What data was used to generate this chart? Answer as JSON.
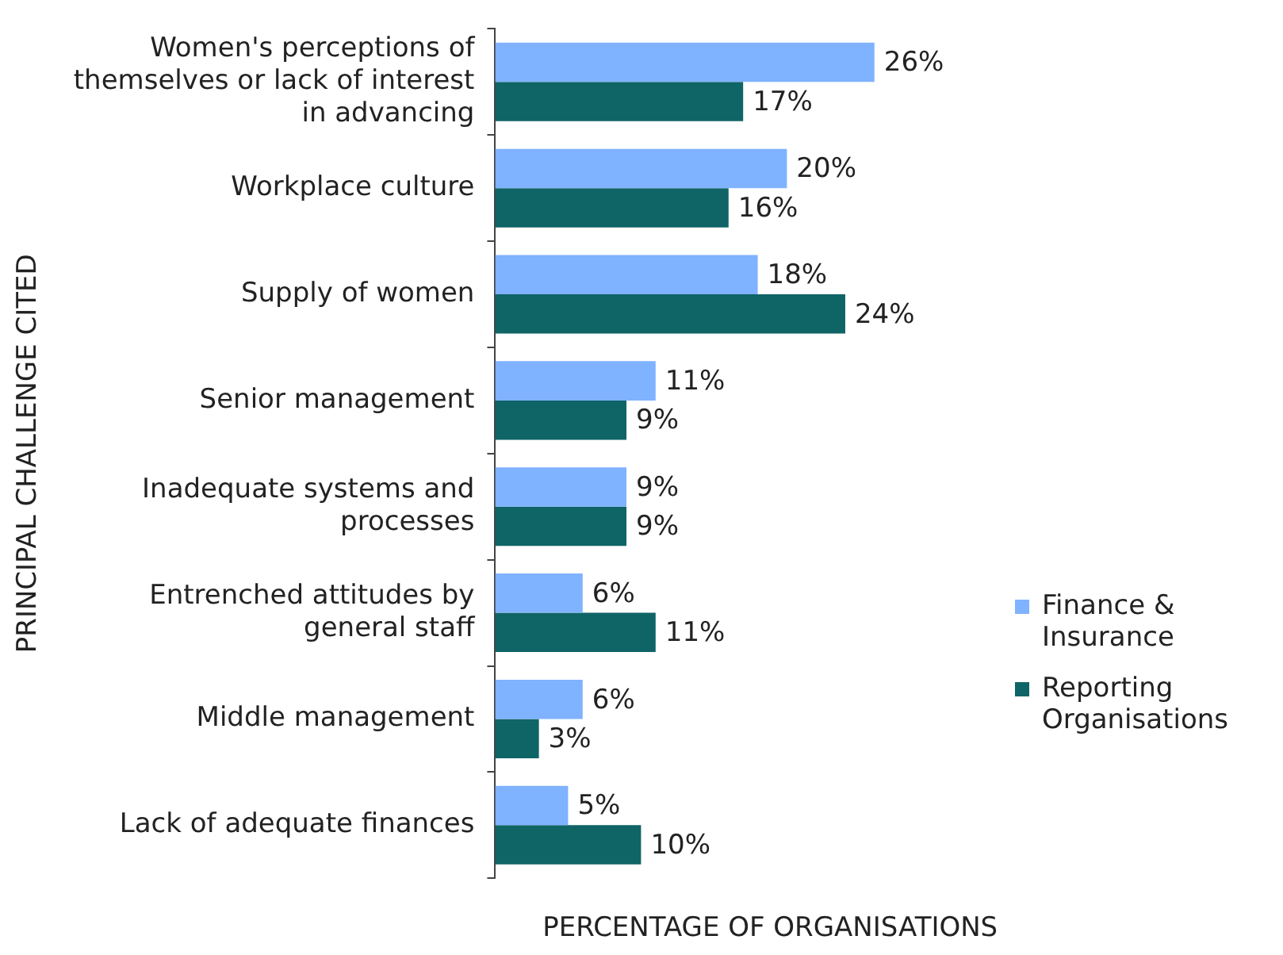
{
  "chart_data": {
    "type": "bar",
    "orientation": "horizontal",
    "xlabel": "PERCENTAGE OF ORGANISATIONS",
    "ylabel": "PRINCIPAL CHALLENGE CITED",
    "categories": [
      "Women's perceptions of themselves or lack of interest in advancing",
      "Workplace culture",
      "Supply of women",
      "Senior management",
      "Inadequate systems and processes",
      "Entrenched attitudes by general staff",
      "Middle management",
      "Lack of adequate finances"
    ],
    "series": [
      {
        "name": "Finance & Insurance",
        "color": "#7fb2ff",
        "values": [
          26,
          20,
          18,
          11,
          9,
          6,
          6,
          5
        ],
        "value_labels": [
          "26%",
          "20%",
          "18%",
          "11%",
          "9%",
          "6%",
          "6%",
          "5%"
        ]
      },
      {
        "name": "Reporting Organisations",
        "color": "#0f6466",
        "values": [
          17,
          16,
          24,
          9,
          9,
          11,
          3,
          10
        ],
        "value_labels": [
          "17%",
          "16%",
          "24%",
          "9%",
          "9%",
          "11%",
          "3%",
          "10%"
        ]
      }
    ],
    "grid": false,
    "legend": "right"
  }
}
